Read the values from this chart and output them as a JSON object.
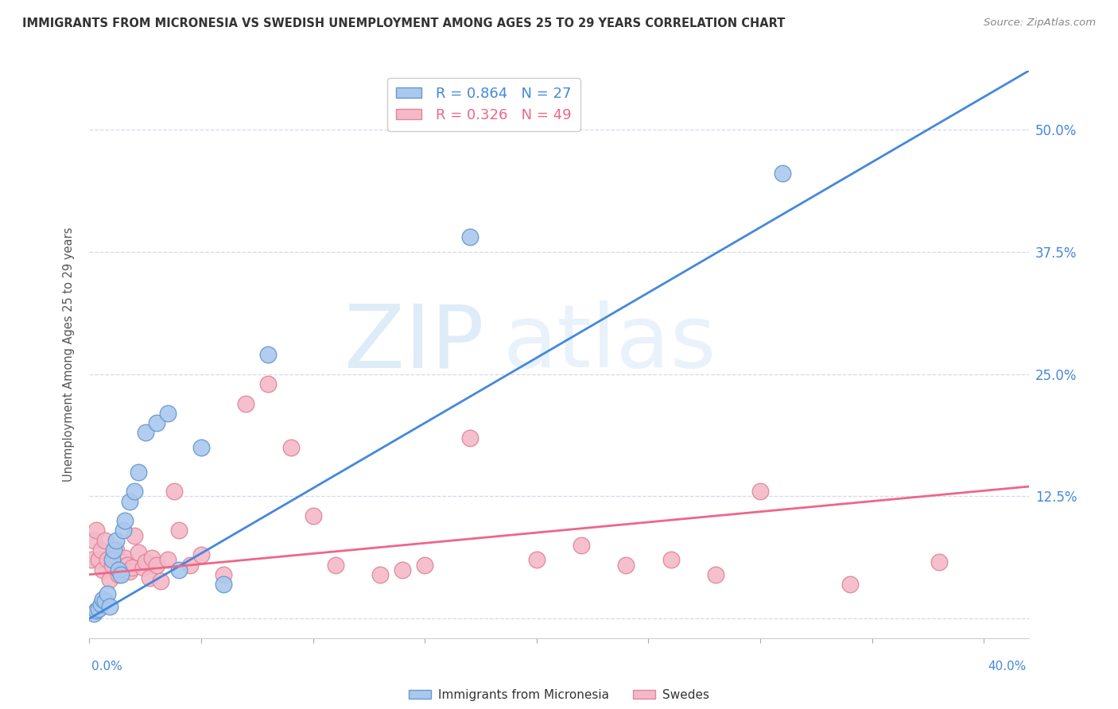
{
  "title": "IMMIGRANTS FROM MICRONESIA VS SWEDISH UNEMPLOYMENT AMONG AGES 25 TO 29 YEARS CORRELATION CHART",
  "source": "Source: ZipAtlas.com",
  "ylabel": "Unemployment Among Ages 25 to 29 years",
  "watermark": "ZIPatlas",
  "blue_label": "Immigrants from Micronesia",
  "pink_label": "Swedes",
  "blue_R": "0.864",
  "blue_N": "27",
  "pink_R": "0.326",
  "pink_N": "49",
  "xlim": [
    0.0,
    0.42
  ],
  "ylim": [
    -0.02,
    0.56
  ],
  "yticks": [
    0.0,
    0.125,
    0.25,
    0.375,
    0.5
  ],
  "ytick_labels": [
    "",
    "12.5%",
    "25.0%",
    "37.5%",
    "50.0%"
  ],
  "xticks": [
    0.0,
    0.05,
    0.1,
    0.15,
    0.2,
    0.25,
    0.3,
    0.35,
    0.4
  ],
  "grid_color": "#d8d8e8",
  "blue_color": "#aac8ee",
  "blue_edge_color": "#6699cc",
  "blue_line_color": "#4488dd",
  "pink_color": "#f5b8c8",
  "pink_edge_color": "#dd8899",
  "pink_line_color": "#ee6688",
  "background_color": "#ffffff",
  "title_color": "#333333",
  "source_color": "#888888",
  "ylabel_color": "#555555",
  "right_tick_color": "#4488dd",
  "bottom_label_color": "#4488dd",
  "blue_scatter_x": [
    0.002,
    0.003,
    0.004,
    0.005,
    0.006,
    0.007,
    0.008,
    0.009,
    0.01,
    0.011,
    0.012,
    0.013,
    0.014,
    0.015,
    0.016,
    0.018,
    0.02,
    0.022,
    0.025,
    0.03,
    0.035,
    0.04,
    0.05,
    0.06,
    0.08,
    0.17,
    0.31
  ],
  "blue_scatter_y": [
    0.005,
    0.008,
    0.01,
    0.015,
    0.02,
    0.018,
    0.025,
    0.012,
    0.06,
    0.07,
    0.08,
    0.05,
    0.045,
    0.09,
    0.1,
    0.12,
    0.13,
    0.15,
    0.19,
    0.2,
    0.21,
    0.05,
    0.175,
    0.035,
    0.27,
    0.39,
    0.455
  ],
  "pink_scatter_x": [
    0.001,
    0.002,
    0.003,
    0.004,
    0.005,
    0.006,
    0.007,
    0.008,
    0.009,
    0.01,
    0.011,
    0.012,
    0.013,
    0.015,
    0.016,
    0.017,
    0.018,
    0.019,
    0.02,
    0.022,
    0.024,
    0.025,
    0.027,
    0.028,
    0.03,
    0.032,
    0.035,
    0.038,
    0.04,
    0.045,
    0.05,
    0.06,
    0.07,
    0.08,
    0.09,
    0.1,
    0.11,
    0.13,
    0.14,
    0.15,
    0.17,
    0.2,
    0.22,
    0.24,
    0.26,
    0.28,
    0.3,
    0.34,
    0.38
  ],
  "pink_scatter_y": [
    0.06,
    0.08,
    0.09,
    0.06,
    0.07,
    0.05,
    0.08,
    0.06,
    0.04,
    0.055,
    0.065,
    0.07,
    0.045,
    0.058,
    0.062,
    0.055,
    0.048,
    0.052,
    0.085,
    0.068,
    0.052,
    0.058,
    0.042,
    0.062,
    0.055,
    0.038,
    0.06,
    0.13,
    0.09,
    0.055,
    0.065,
    0.045,
    0.22,
    0.24,
    0.175,
    0.105,
    0.055,
    0.045,
    0.05,
    0.055,
    0.185,
    0.06,
    0.075,
    0.055,
    0.06,
    0.045,
    0.13,
    0.035,
    0.058
  ],
  "blue_line_x0": 0.0,
  "blue_line_y0": 0.0,
  "blue_line_x1": 0.42,
  "blue_line_y1": 0.56,
  "pink_line_x0": 0.0,
  "pink_line_y0": 0.045,
  "pink_line_x1": 0.42,
  "pink_line_y1": 0.135
}
